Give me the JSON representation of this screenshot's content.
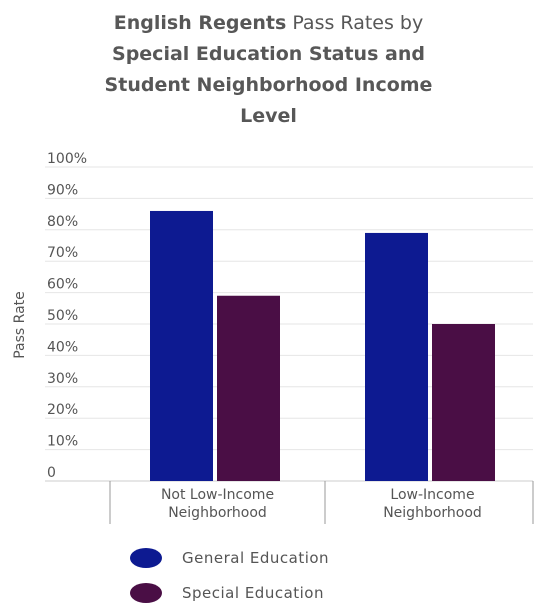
{
  "title": {
    "line1_bold": "English Regents",
    "line1_normal": "Pass Rates by",
    "line2": "Special Education Status and",
    "line3": "Student Neighborhood Income",
    "line4": "Level"
  },
  "colors": {
    "general": "#0d1a91",
    "special": "#4a0e45",
    "grid": "#e6e6e6",
    "axis": "#999999"
  },
  "chart_data": {
    "type": "bar",
    "categories": [
      [
        "Not Low-Income",
        "Neighborhood"
      ],
      [
        "Low-Income",
        "Neighborhood"
      ]
    ],
    "series": [
      {
        "name": "General Education",
        "values": [
          86,
          79
        ]
      },
      {
        "name": "Special Education",
        "values": [
          59,
          50
        ]
      }
    ],
    "ylabel": "Pass Rate",
    "ylim": [
      0,
      100
    ],
    "yticks": [
      "0",
      "10%",
      "20%",
      "30%",
      "40%",
      "50%",
      "60%",
      "70%",
      "80%",
      "90%",
      "100%"
    ],
    "grid": true,
    "legend_position": "bottom"
  }
}
